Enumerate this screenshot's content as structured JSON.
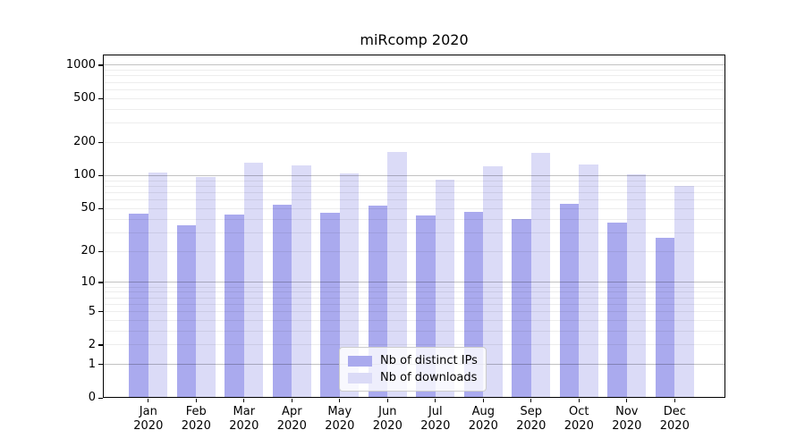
{
  "chart_data": {
    "type": "bar",
    "title": "miRcomp 2020",
    "categories": [
      "Jan",
      "Feb",
      "Mar",
      "Apr",
      "May",
      "Jun",
      "Jul",
      "Aug",
      "Sep",
      "Oct",
      "Nov",
      "Dec"
    ],
    "category_year": "2020",
    "series": [
      {
        "name": "Nb of distinct IPs",
        "color": "#aaaaee",
        "values": [
          45,
          35,
          44,
          54,
          46,
          53,
          43,
          47,
          40,
          55,
          37,
          27
        ]
      },
      {
        "name": "Nb of downloads",
        "color": "#dbdbf7",
        "values": [
          106,
          98,
          130,
          125,
          104,
          165,
          92,
          122,
          160,
          127,
          103,
          80
        ]
      }
    ],
    "yscale": "log1p",
    "ylim": [
      0,
      1250
    ],
    "ytick_labels": [
      0,
      1,
      2,
      5,
      10,
      20,
      50,
      100,
      200,
      500,
      1000
    ],
    "major_gridline_values": [
      1,
      10,
      100,
      1000
    ],
    "grid": true,
    "legend_position": "lower center inside plot"
  }
}
